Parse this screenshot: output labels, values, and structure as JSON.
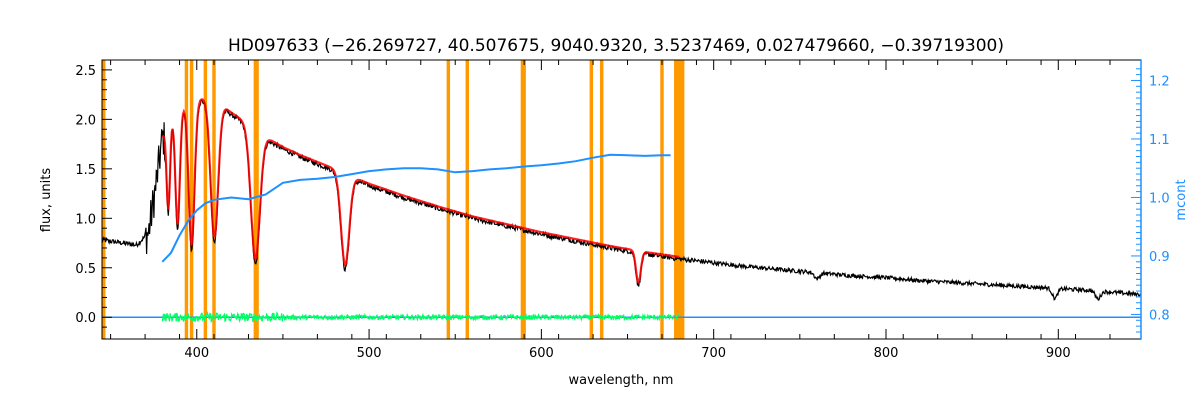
{
  "chart_data": {
    "type": "line",
    "title": "HD097633    (−26.269727, 40.507675, 9040.9320, 3.5237469, 0.027479660, −0.39719300)",
    "xlabel": "wavelength, nm",
    "ylabel": "flux, units",
    "y2label": "mcont",
    "xlim": [
      345,
      948
    ],
    "ylim": [
      -0.22,
      2.6
    ],
    "y2lim": [
      0.758,
      1.235
    ],
    "x_ticks": [
      400,
      500,
      600,
      700,
      800,
      900
    ],
    "y_ticks": [
      "0.0",
      "0.5",
      "1.0",
      "1.5",
      "2.0",
      "2.5"
    ],
    "y2_ticks": [
      "0.8",
      "0.9",
      "1.0",
      "1.1",
      "1.2"
    ],
    "grid": false,
    "colors": {
      "observed": "#000000",
      "model": "#ff0000",
      "residual": "#00ff66",
      "mcont": "#1e90ff",
      "mask": "#ff9900",
      "axes": "#000000",
      "right_axis": "#1e90ff"
    },
    "mask_bands": [
      [
        345,
        347
      ],
      [
        393,
        395
      ],
      [
        396,
        398
      ],
      [
        404,
        406
      ],
      [
        409,
        411
      ],
      [
        433,
        436
      ],
      [
        545,
        547
      ],
      [
        556,
        558
      ],
      [
        588,
        591
      ],
      [
        628,
        630
      ],
      [
        634,
        636
      ],
      [
        669,
        671
      ],
      [
        677,
        683
      ]
    ],
    "lines": [
      {
        "center": 383.5,
        "depth": 0.9,
        "width": 1.0
      },
      {
        "center": 388.9,
        "depth": 1.2,
        "width": 1.3
      },
      {
        "center": 397.0,
        "depth": 1.5,
        "width": 1.7
      },
      {
        "center": 410.2,
        "depth": 1.45,
        "width": 2.2
      },
      {
        "center": 434.0,
        "depth": 1.35,
        "width": 2.6
      },
      {
        "center": 486.1,
        "depth": 0.95,
        "width": 2.4
      },
      {
        "center": 656.3,
        "depth": 0.33,
        "width": 1.4
      },
      {
        "center": 760.0,
        "depth": 0.06,
        "width": 1.5
      },
      {
        "center": 898.0,
        "depth": 0.1,
        "width": 1.5
      },
      {
        "center": 923.0,
        "depth": 0.08,
        "width": 1.5
      }
    ],
    "series": [
      {
        "key": "observed",
        "x": [
          345,
          365,
          372,
          376,
          380,
          385,
          390,
          395,
          400,
          405,
          410,
          415,
          420,
          430,
          440,
          450,
          460,
          470,
          480,
          490,
          500,
          520,
          540,
          560,
          580,
          600,
          620,
          640,
          660,
          680,
          700,
          720,
          740,
          760,
          780,
          800,
          820,
          840,
          860,
          880,
          900,
          920,
          940,
          948
        ],
        "y": [
          0.78,
          0.73,
          0.85,
          1.3,
          1.8,
          2.0,
          2.1,
          2.15,
          2.18,
          2.2,
          2.2,
          2.12,
          2.05,
          1.93,
          1.8,
          1.7,
          1.62,
          1.55,
          1.48,
          1.4,
          1.33,
          1.21,
          1.1,
          1.0,
          0.92,
          0.84,
          0.77,
          0.7,
          0.64,
          0.59,
          0.55,
          0.51,
          0.48,
          0.45,
          0.42,
          0.4,
          0.37,
          0.35,
          0.33,
          0.31,
          0.29,
          0.27,
          0.24,
          0.23
        ]
      },
      {
        "key": "model",
        "x": [
          380,
          385,
          390,
          395,
          400,
          405,
          410,
          415,
          420,
          430,
          440,
          450,
          460,
          470,
          480,
          490,
          500,
          520,
          540,
          560,
          580,
          600,
          620,
          640,
          660,
          680
        ],
        "y": [
          1.8,
          2.0,
          2.1,
          2.15,
          2.18,
          2.2,
          2.2,
          2.12,
          2.05,
          1.93,
          1.8,
          1.7,
          1.62,
          1.55,
          1.48,
          1.4,
          1.33,
          1.21,
          1.1,
          1.0,
          0.92,
          0.84,
          0.77,
          0.7,
          0.64,
          0.59
        ]
      },
      {
        "key": "residual",
        "x": [
          380,
          680
        ],
        "y": [
          0.0,
          0.0
        ],
        "noise": 0.025
      },
      {
        "key": "mcont",
        "axis": "right",
        "x": [
          380,
          385,
          390,
          395,
          400,
          405,
          410,
          420,
          430,
          440,
          450,
          460,
          470,
          480,
          490,
          500,
          510,
          520,
          530,
          540,
          550,
          560,
          570,
          580,
          590,
          600,
          610,
          620,
          630,
          640,
          650,
          660,
          670,
          675
        ],
        "y": [
          0.89,
          0.905,
          0.935,
          0.96,
          0.978,
          0.99,
          0.996,
          1.0,
          0.997,
          1.005,
          1.025,
          1.03,
          1.032,
          1.035,
          1.04,
          1.045,
          1.048,
          1.05,
          1.05,
          1.048,
          1.043,
          1.045,
          1.048,
          1.05,
          1.053,
          1.055,
          1.058,
          1.062,
          1.068,
          1.073,
          1.072,
          1.071,
          1.072,
          1.072
        ]
      },
      {
        "key": "zero_line",
        "x": [
          345,
          948
        ],
        "y": [
          0.0,
          0.0
        ]
      }
    ]
  }
}
